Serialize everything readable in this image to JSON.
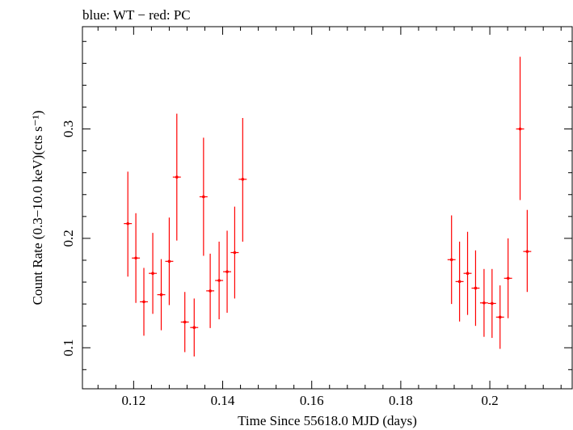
{
  "chart_data": {
    "type": "scatter",
    "title": "blue: WT − red: PC",
    "xlabel": "Time Since 55618.0 MJD (days)",
    "ylabel": "Count Rate (0.3−10.0 keV)(cts s⁻¹)",
    "xlim": [
      0.1085,
      0.2185
    ],
    "ylim": [
      0.0625,
      0.3935
    ],
    "x_ticks": [
      0.12,
      0.14,
      0.16,
      0.18,
      0.2
    ],
    "x_tick_labels": [
      "0.12",
      "0.14",
      "0.16",
      "0.18",
      "0.2"
    ],
    "y_ticks": [
      0.1,
      0.2,
      0.3
    ],
    "y_tick_labels": [
      "0.1",
      "0.2",
      "0.3"
    ],
    "grid": false,
    "series": [
      {
        "name": "PC",
        "color": "#ff0000",
        "points": [
          {
            "x": 0.1187,
            "y": 0.2135,
            "err_lo": 0.165,
            "err_hi": 0.261,
            "xerr": 0.0009
          },
          {
            "x": 0.1205,
            "y": 0.182,
            "err_lo": 0.141,
            "err_hi": 0.223,
            "xerr": 0.0009
          },
          {
            "x": 0.1223,
            "y": 0.142,
            "err_lo": 0.111,
            "err_hi": 0.173,
            "xerr": 0.0009
          },
          {
            "x": 0.1243,
            "y": 0.168,
            "err_lo": 0.131,
            "err_hi": 0.205,
            "xerr": 0.0009
          },
          {
            "x": 0.1262,
            "y": 0.1485,
            "err_lo": 0.116,
            "err_hi": 0.181,
            "xerr": 0.0009
          },
          {
            "x": 0.128,
            "y": 0.179,
            "err_lo": 0.139,
            "err_hi": 0.219,
            "xerr": 0.0009
          },
          {
            "x": 0.1297,
            "y": 0.256,
            "err_lo": 0.198,
            "err_hi": 0.314,
            "xerr": 0.0009
          },
          {
            "x": 0.1315,
            "y": 0.1235,
            "err_lo": 0.096,
            "err_hi": 0.151,
            "xerr": 0.0009
          },
          {
            "x": 0.1336,
            "y": 0.1185,
            "err_lo": 0.092,
            "err_hi": 0.145,
            "xerr": 0.0009
          },
          {
            "x": 0.1357,
            "y": 0.238,
            "err_lo": 0.184,
            "err_hi": 0.292,
            "xerr": 0.0009
          },
          {
            "x": 0.1372,
            "y": 0.152,
            "err_lo": 0.118,
            "err_hi": 0.186,
            "xerr": 0.0009
          },
          {
            "x": 0.1392,
            "y": 0.1615,
            "err_lo": 0.126,
            "err_hi": 0.197,
            "xerr": 0.0009
          },
          {
            "x": 0.141,
            "y": 0.1695,
            "err_lo": 0.132,
            "err_hi": 0.207,
            "xerr": 0.0009
          },
          {
            "x": 0.1427,
            "y": 0.187,
            "err_lo": 0.145,
            "err_hi": 0.229,
            "xerr": 0.0009
          },
          {
            "x": 0.1445,
            "y": 0.254,
            "err_lo": 0.197,
            "err_hi": 0.31,
            "xerr": 0.0009
          },
          {
            "x": 0.1914,
            "y": 0.1805,
            "err_lo": 0.14,
            "err_hi": 0.221,
            "xerr": 0.0009
          },
          {
            "x": 0.1932,
            "y": 0.1605,
            "err_lo": 0.124,
            "err_hi": 0.197,
            "xerr": 0.0009
          },
          {
            "x": 0.195,
            "y": 0.168,
            "err_lo": 0.13,
            "err_hi": 0.206,
            "xerr": 0.0009
          },
          {
            "x": 0.1968,
            "y": 0.1545,
            "err_lo": 0.12,
            "err_hi": 0.189,
            "xerr": 0.0009
          },
          {
            "x": 0.1987,
            "y": 0.141,
            "err_lo": 0.11,
            "err_hi": 0.172,
            "xerr": 0.0009
          },
          {
            "x": 0.2005,
            "y": 0.1405,
            "err_lo": 0.109,
            "err_hi": 0.172,
            "xerr": 0.0009
          },
          {
            "x": 0.2023,
            "y": 0.128,
            "err_lo": 0.099,
            "err_hi": 0.157,
            "xerr": 0.0009
          },
          {
            "x": 0.2041,
            "y": 0.1635,
            "err_lo": 0.127,
            "err_hi": 0.2,
            "xerr": 0.0009
          },
          {
            "x": 0.2068,
            "y": 0.3,
            "err_lo": 0.235,
            "err_hi": 0.366,
            "xerr": 0.0009
          },
          {
            "x": 0.2084,
            "y": 0.188,
            "err_lo": 0.151,
            "err_hi": 0.226,
            "xerr": 0.0009
          }
        ]
      }
    ]
  }
}
